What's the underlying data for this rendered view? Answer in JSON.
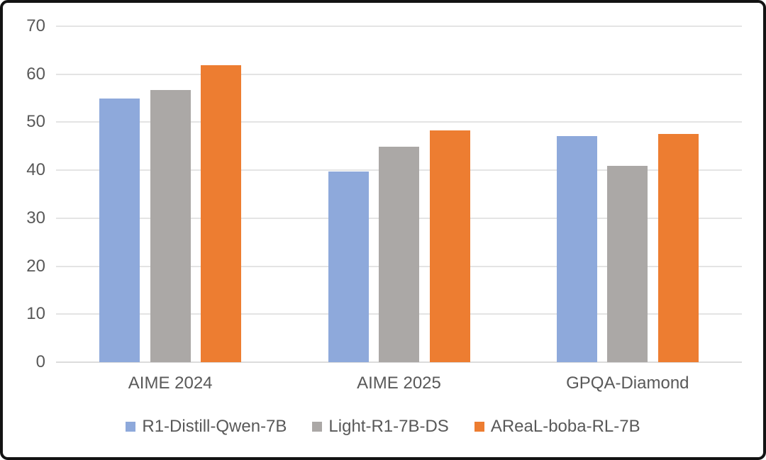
{
  "chart_data": {
    "type": "bar",
    "title": "",
    "xlabel": "",
    "ylabel": "",
    "categories": [
      "AIME 2024",
      "AIME 2025",
      "GPQA-Diamond"
    ],
    "series": [
      {
        "name": "R1-Distill-Qwen-7B",
        "color": "#8EA9DB",
        "values": [
          55.0,
          39.7,
          47.1
        ]
      },
      {
        "name": "Light-R1-7B-DS",
        "color": "#ABA8A6",
        "values": [
          56.7,
          44.9,
          40.9
        ]
      },
      {
        "name": "AReaL-boba-RL-7B",
        "color": "#ED7D31",
        "values": [
          61.9,
          48.3,
          47.6
        ]
      }
    ],
    "ylim": [
      0,
      70
    ],
    "ytick_step": 10,
    "yticks": [
      0,
      10,
      20,
      30,
      40,
      50,
      60,
      70
    ],
    "grid": true,
    "legend_position": "bottom"
  },
  "colors": {
    "background": "#FFFFFF",
    "frame_border": "#131313",
    "gridline": "#E4E4E4",
    "axis_line": "#DCDCDC",
    "tick_text": "#595959"
  }
}
